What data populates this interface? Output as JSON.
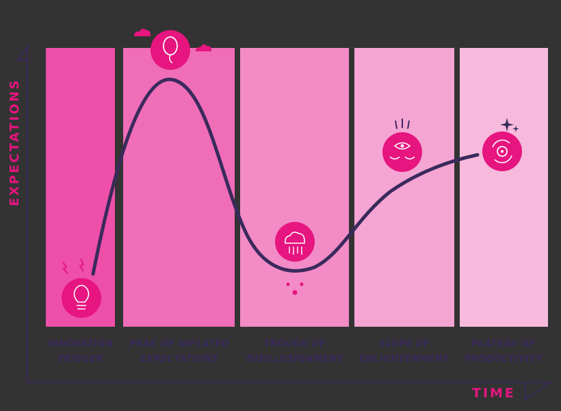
{
  "axes": {
    "y_label": "EXPECTATIONS",
    "x_label": "TIME"
  },
  "phases": [
    {
      "label": "INNOVATION\nTRIGGER",
      "icon": "lightbulb-icon",
      "color": "#ee4fa8"
    },
    {
      "label": "PEAK OF INFLATED\nEXPECTATIONS",
      "icon": "balloon-icon",
      "color": "#f06db7"
    },
    {
      "label": "TROUGH OF\nDISILLUSIONMENT",
      "icon": "rain-cloud-icon",
      "color": "#f28bc6"
    },
    {
      "label": "SLOPE OF\nENLIGHTENMENT",
      "icon": "eye-icon",
      "color": "#f5a5d3"
    },
    {
      "label": "PLATEAU OF\nPRODUCTIVITY",
      "icon": "gear-cycle-icon",
      "color": "#f7badd"
    }
  ],
  "colors": {
    "accent": "#e6157f",
    "curve": "#3a2a5c",
    "axis": "#3a2a5c"
  }
}
